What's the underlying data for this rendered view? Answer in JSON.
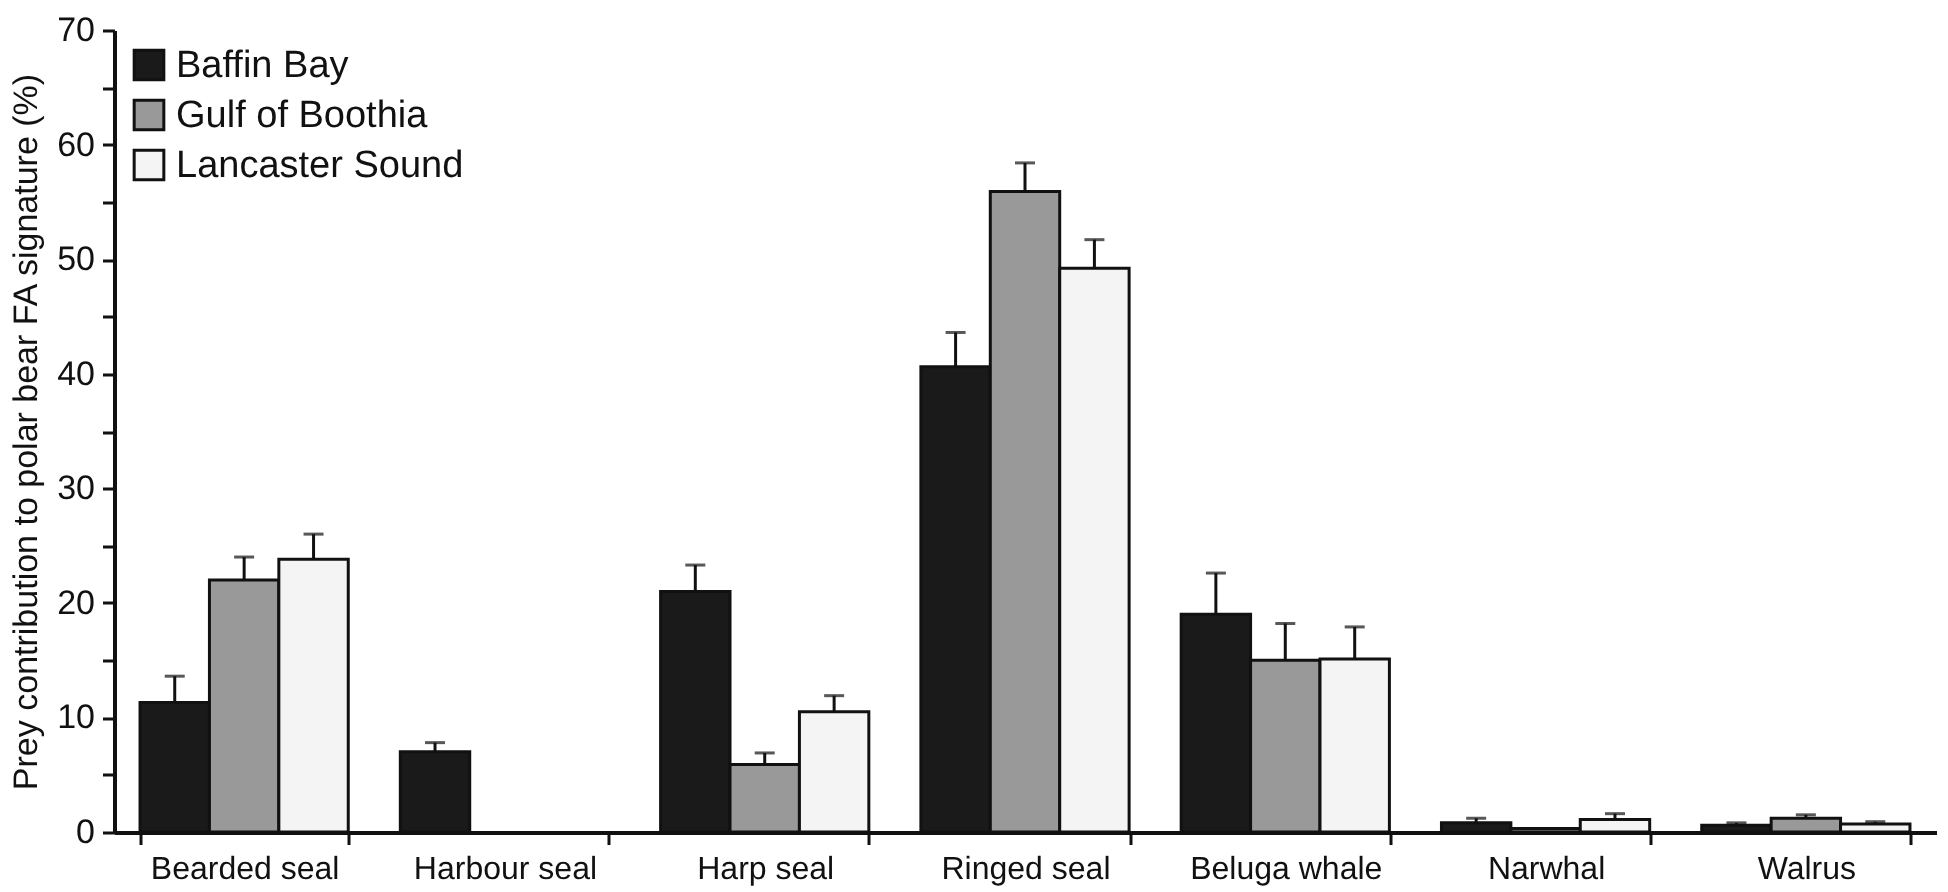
{
  "chart_data": {
    "type": "bar",
    "ylabel": "Prey contribution to polar bear FA signature (%)",
    "categories": [
      "Bearded seal",
      "Harbour seal",
      "Harp seal",
      "Ringed seal",
      "Beluga whale",
      "Narwhal",
      "Walrus"
    ],
    "series": [
      {
        "name": "Baffin Bay",
        "color": "#1a1a1a",
        "values": [
          11.3,
          7,
          21,
          40.6,
          19,
          0.8,
          0.6
        ],
        "errors": [
          [
            11.3,
            13.6
          ],
          [
            7,
            7.8
          ],
          [
            21,
            23.3
          ],
          [
            40.6,
            43.6
          ],
          [
            19,
            22.6
          ],
          [
            0.8,
            1.2
          ],
          [
            0.6,
            0.8
          ]
        ]
      },
      {
        "name": "Gulf of Boothia",
        "color": "#999999",
        "values": [
          22,
          null,
          5.9,
          55.9,
          15,
          0.3,
          1.2
        ],
        "errors": [
          [
            22,
            24
          ],
          null,
          [
            5.9,
            6.9
          ],
          [
            55.9,
            58.4
          ],
          [
            15,
            18.2
          ],
          null,
          [
            1.2,
            1.5
          ]
        ]
      },
      {
        "name": "Lancaster Sound",
        "color": "#f4f4f4",
        "values": [
          23.8,
          null,
          10.5,
          49.2,
          15.1,
          1.1,
          0.7
        ],
        "errors": [
          [
            23.8,
            26
          ],
          null,
          [
            10.5,
            11.9
          ],
          [
            49.2,
            51.7
          ],
          [
            15.1,
            17.9
          ],
          [
            1.1,
            1.6
          ],
          [
            0.7,
            0.9
          ]
        ]
      }
    ],
    "ylim": [
      0,
      70
    ],
    "yticks": [
      0,
      {
        "value": 5,
        "label": null
      },
      10,
      {
        "value": 15,
        "label": null
      },
      20,
      {
        "value": 25,
        "label": null
      },
      30,
      {
        "value": 35,
        "label": null
      },
      40,
      {
        "value": 45,
        "label": null
      },
      50,
      {
        "value": 55,
        "label": null
      },
      60,
      {
        "value": 65,
        "label": null
      },
      70
    ],
    "legend": "top left"
  }
}
